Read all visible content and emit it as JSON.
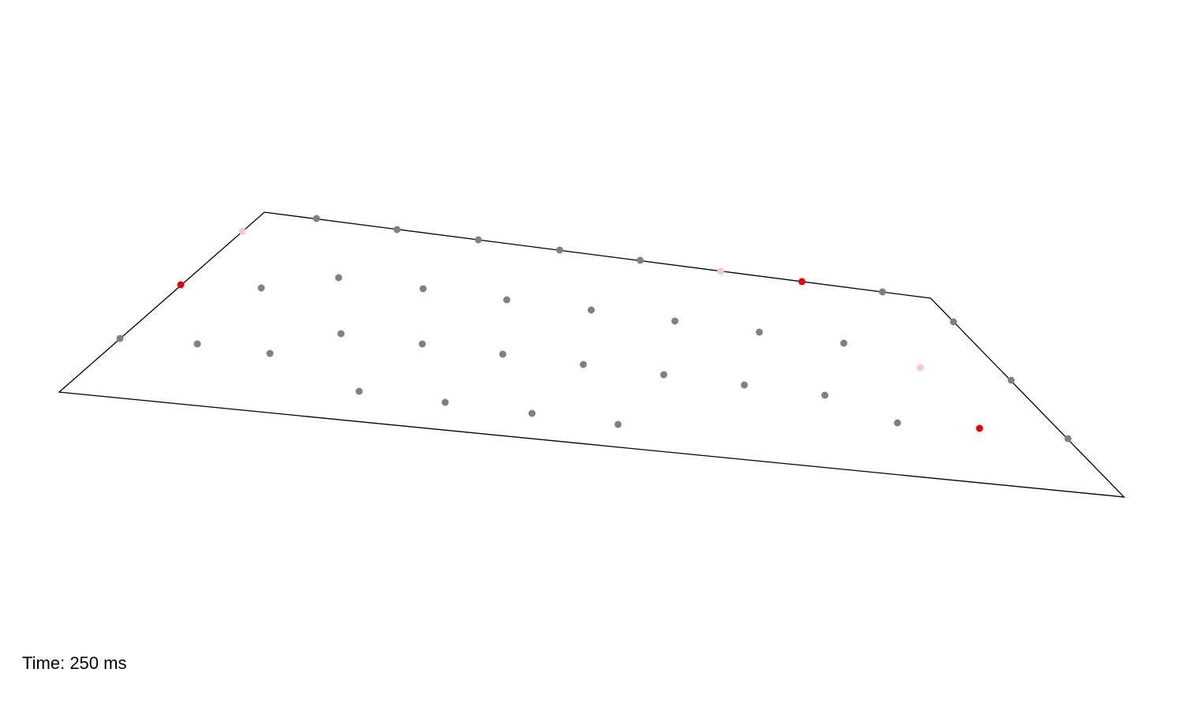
{
  "readout": {
    "time_label": "Time:",
    "time_value": "250",
    "time_unit": "ms"
  },
  "colors": {
    "outline": "#000000",
    "sensor_inactive": "#808080",
    "sensor_active": "#ee0000",
    "sensor_fading": "#ffc4c4"
  },
  "sensor_states": [
    "fading",
    "inactive",
    "inactive",
    "inactive",
    "inactive",
    "inactive",
    "inactive",
    "fading",
    "active",
    "inactive",
    "active",
    "inactive",
    "inactive",
    "inactive",
    "inactive",
    "inactive",
    "inactive",
    "inactive",
    "inactive",
    "inactive",
    "inactive",
    "inactive",
    "inactive",
    "inactive",
    "inactive",
    "inactive",
    "inactive",
    "inactive",
    "inactive",
    "inactive",
    "inactive",
    "inactive",
    "inactive",
    "inactive",
    "inactive",
    "inactive",
    "inactive",
    "inactive",
    "inactive",
    "fading",
    "active",
    "inactive",
    "inactive",
    "inactive"
  ]
}
